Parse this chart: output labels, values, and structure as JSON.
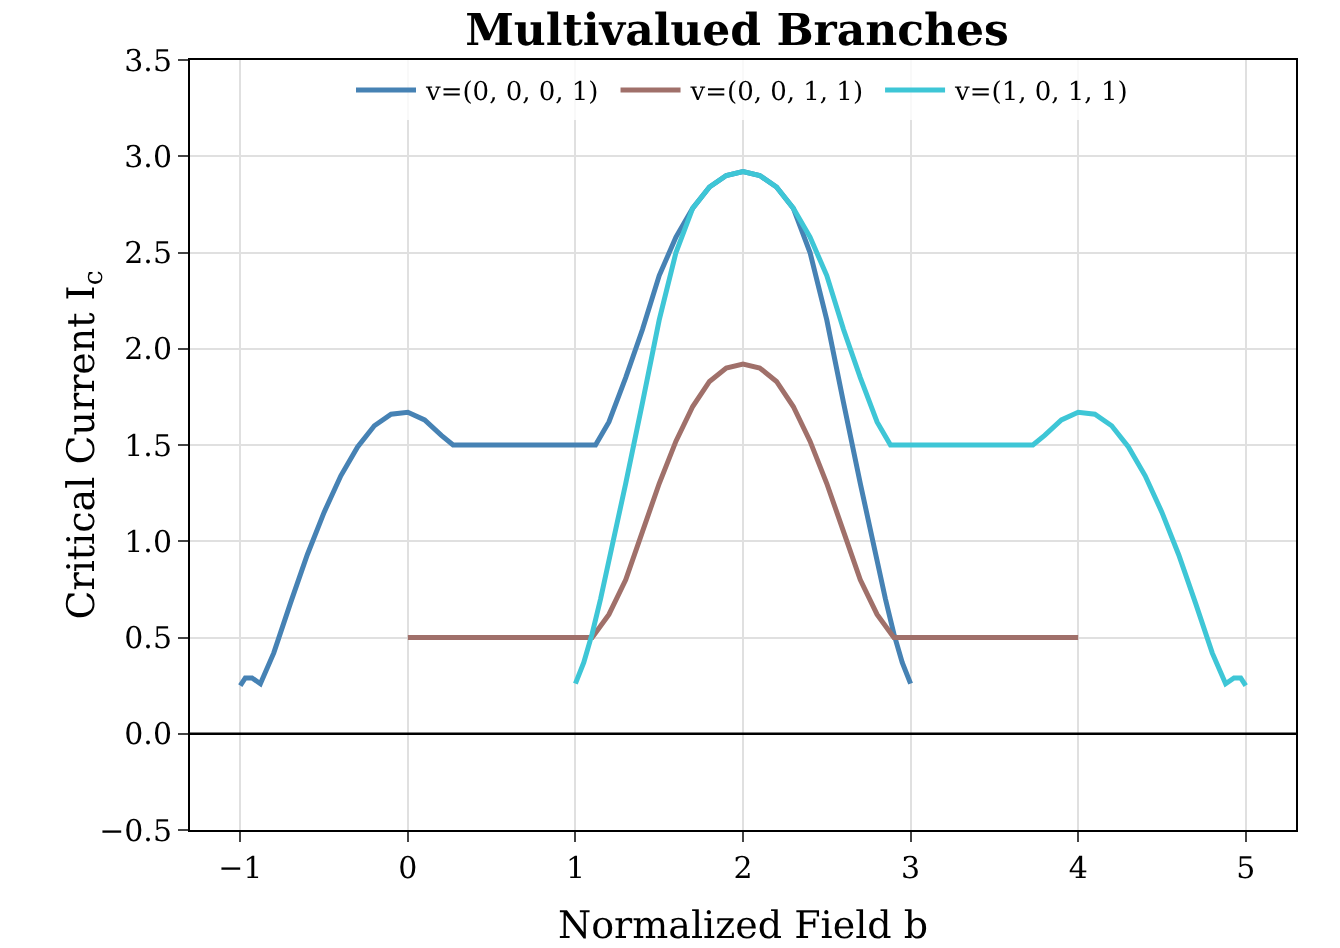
{
  "chart_data": {
    "type": "line",
    "title": "Multivalued Branches",
    "xlabel": "Normalized Field b",
    "ylabel": "Critical Current I$_{c}$",
    "xlim": [
      -1.3,
      5.3
    ],
    "xticks": [
      {
        "value": -1,
        "label": "−1"
      },
      0,
      1,
      2,
      3,
      4,
      5
    ],
    "ylim": [
      -0.5,
      3.5
    ],
    "yticks": [
      {
        "value": -0.5,
        "label": "−0.5"
      },
      {
        "value": 0,
        "label": "0.0"
      },
      0.5,
      {
        "value": 1,
        "label": "1.0"
      },
      1.5,
      {
        "value": 2,
        "label": "2.0"
      },
      2.5,
      {
        "value": 3,
        "label": "3.0"
      },
      3.5
    ],
    "grid": true,
    "legend": "top",
    "line_style": "solid",
    "ref_lines": [
      {
        "axis": "y",
        "value": 0,
        "color": "#000000"
      }
    ],
    "series": [
      {
        "name": "v=(0, 0, 0, 1)",
        "color": "#4682b4",
        "x": [
          -1,
          -0.97,
          -0.93,
          -0.88,
          -0.8,
          -0.7,
          -0.6,
          -0.5,
          -0.4,
          -0.3,
          -0.2,
          -0.1,
          0,
          0.1,
          0.2,
          0.27,
          1.12,
          1.2,
          1.3,
          1.4,
          1.5,
          1.6,
          1.7,
          1.8,
          1.9,
          2,
          2.1,
          2.2,
          2.3,
          2.4,
          2.5,
          2.6,
          2.7,
          2.8,
          2.85,
          2.9,
          2.95,
          3
        ],
        "values": [
          0.25,
          0.29,
          0.29,
          0.26,
          0.42,
          0.68,
          0.93,
          1.15,
          1.34,
          1.49,
          1.6,
          1.66,
          1.67,
          1.63,
          1.55,
          1.5,
          1.5,
          1.62,
          1.85,
          2.1,
          2.38,
          2.58,
          2.73,
          2.84,
          2.9,
          2.92,
          2.9,
          2.84,
          2.73,
          2.5,
          2.15,
          1.72,
          1.3,
          0.9,
          0.7,
          0.52,
          0.37,
          0.26
        ]
      },
      {
        "name": "v=(0, 0, 1, 1)",
        "color": "#a0706a",
        "x": [
          0,
          1.1,
          1.2,
          1.3,
          1.4,
          1.5,
          1.6,
          1.7,
          1.8,
          1.9,
          2,
          2.1,
          2.2,
          2.3,
          2.4,
          2.5,
          2.6,
          2.7,
          2.8,
          2.9,
          4
        ],
        "values": [
          0.5,
          0.5,
          0.62,
          0.8,
          1.05,
          1.3,
          1.52,
          1.7,
          1.83,
          1.9,
          1.92,
          1.9,
          1.83,
          1.7,
          1.52,
          1.3,
          1.05,
          0.8,
          0.62,
          0.5,
          0.5
        ]
      },
      {
        "name": "v=(1, 0, 1, 1)",
        "color": "#3ec6d6",
        "x": [
          1,
          1.05,
          1.1,
          1.15,
          1.2,
          1.3,
          1.4,
          1.5,
          1.6,
          1.7,
          1.8,
          1.9,
          2,
          2.1,
          2.2,
          2.3,
          2.4,
          2.5,
          2.6,
          2.7,
          2.8,
          2.88,
          3.73,
          3.8,
          3.9,
          4,
          4.1,
          4.2,
          4.3,
          4.4,
          4.5,
          4.6,
          4.7,
          4.8,
          4.88,
          4.93,
          4.97,
          5
        ],
        "values": [
          0.26,
          0.37,
          0.52,
          0.7,
          0.9,
          1.3,
          1.72,
          2.15,
          2.5,
          2.73,
          2.84,
          2.9,
          2.92,
          2.9,
          2.84,
          2.73,
          2.58,
          2.38,
          2.1,
          1.85,
          1.62,
          1.5,
          1.5,
          1.55,
          1.63,
          1.67,
          1.66,
          1.6,
          1.49,
          1.34,
          1.15,
          0.93,
          0.68,
          0.42,
          0.26,
          0.29,
          0.29,
          0.25
        ]
      }
    ]
  }
}
